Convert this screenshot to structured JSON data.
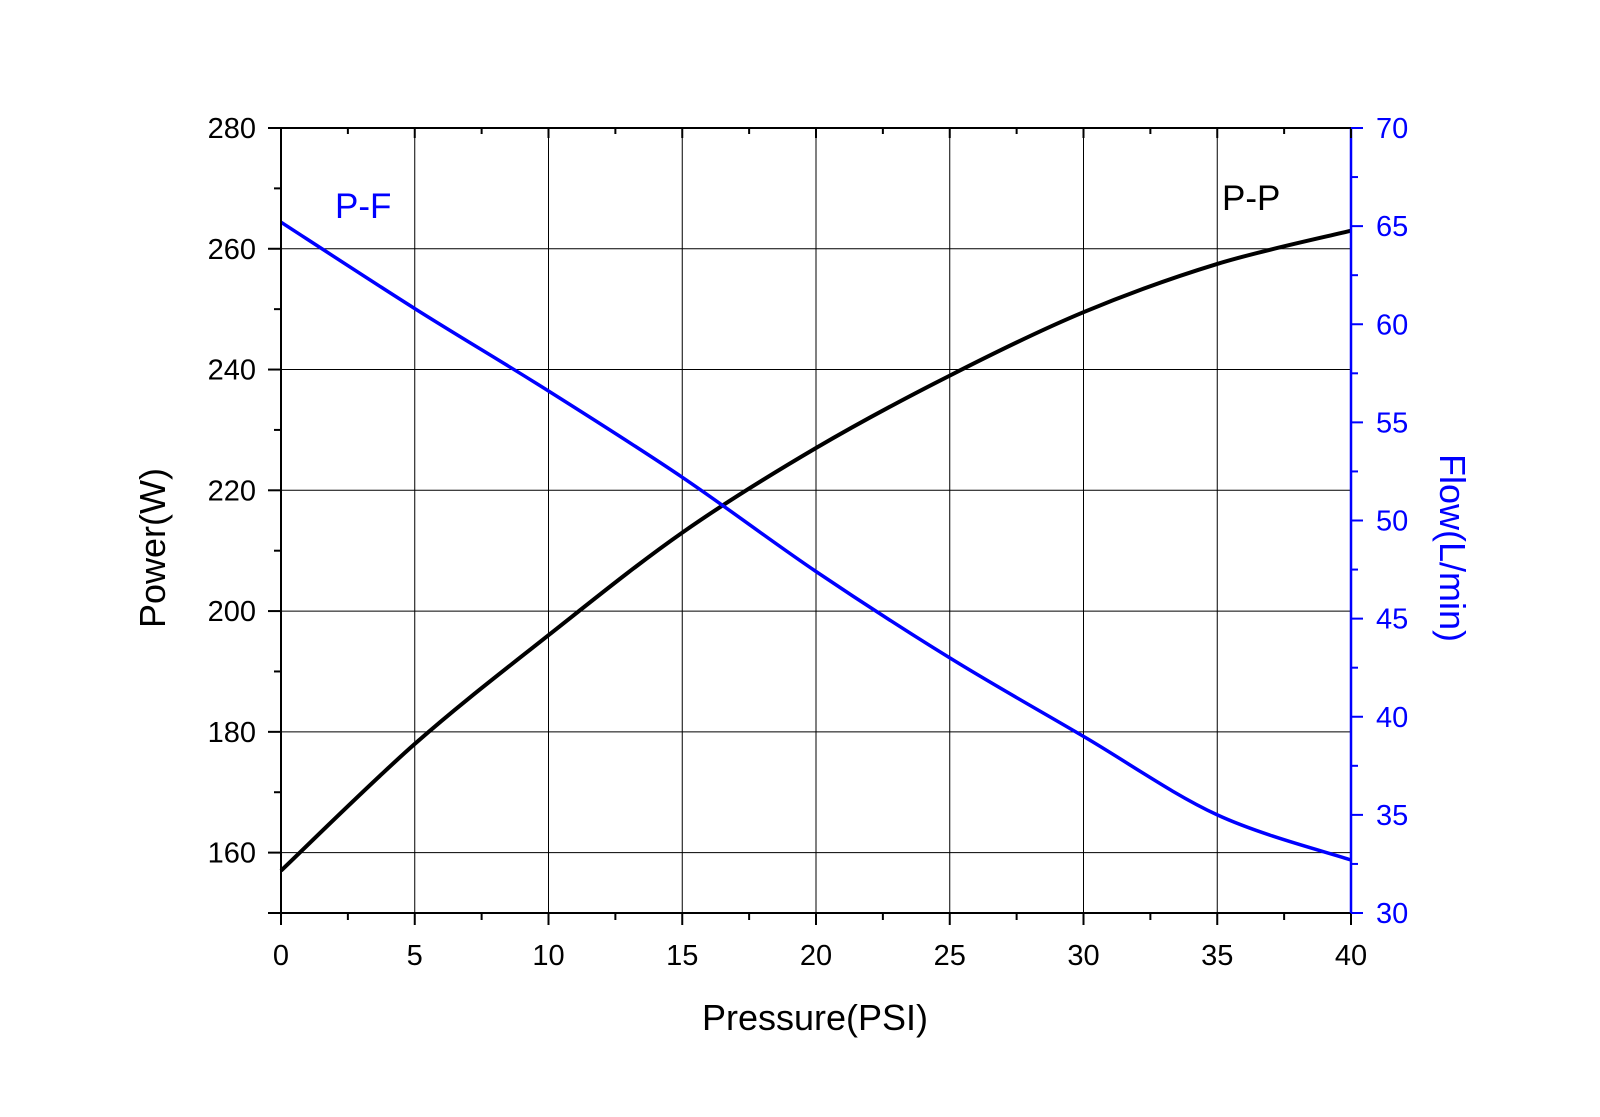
{
  "chart_data": {
    "type": "line",
    "xlabel": "Pressure(PSI)",
    "ylabel_left": "Power(W)",
    "ylabel_right": "Flow(L/min)",
    "xlim": [
      0,
      40
    ],
    "ylim_left": [
      150,
      280
    ],
    "ylim_right": [
      30,
      70
    ],
    "x_ticks": [
      0,
      5,
      10,
      15,
      20,
      25,
      30,
      35,
      40
    ],
    "y_left_ticks": [
      160,
      180,
      200,
      220,
      240,
      260,
      280
    ],
    "y_right_ticks": [
      30,
      35,
      40,
      45,
      50,
      55,
      60,
      65,
      70
    ],
    "grid": true,
    "series": [
      {
        "name": "P-P",
        "axis": "left",
        "color": "#000000",
        "x": [
          0,
          5,
          10,
          15,
          20,
          25,
          30,
          35,
          40
        ],
        "values": [
          157,
          178,
          196,
          213,
          227,
          239,
          249.5,
          257.5,
          263
        ]
      },
      {
        "name": "P-F",
        "axis": "right",
        "color": "#0000ff",
        "x": [
          0,
          5,
          10,
          15,
          20,
          25,
          30,
          35,
          40
        ],
        "values": [
          65.2,
          60.8,
          56.6,
          52.2,
          47.4,
          43.0,
          39.0,
          35.0,
          32.7
        ]
      }
    ]
  }
}
